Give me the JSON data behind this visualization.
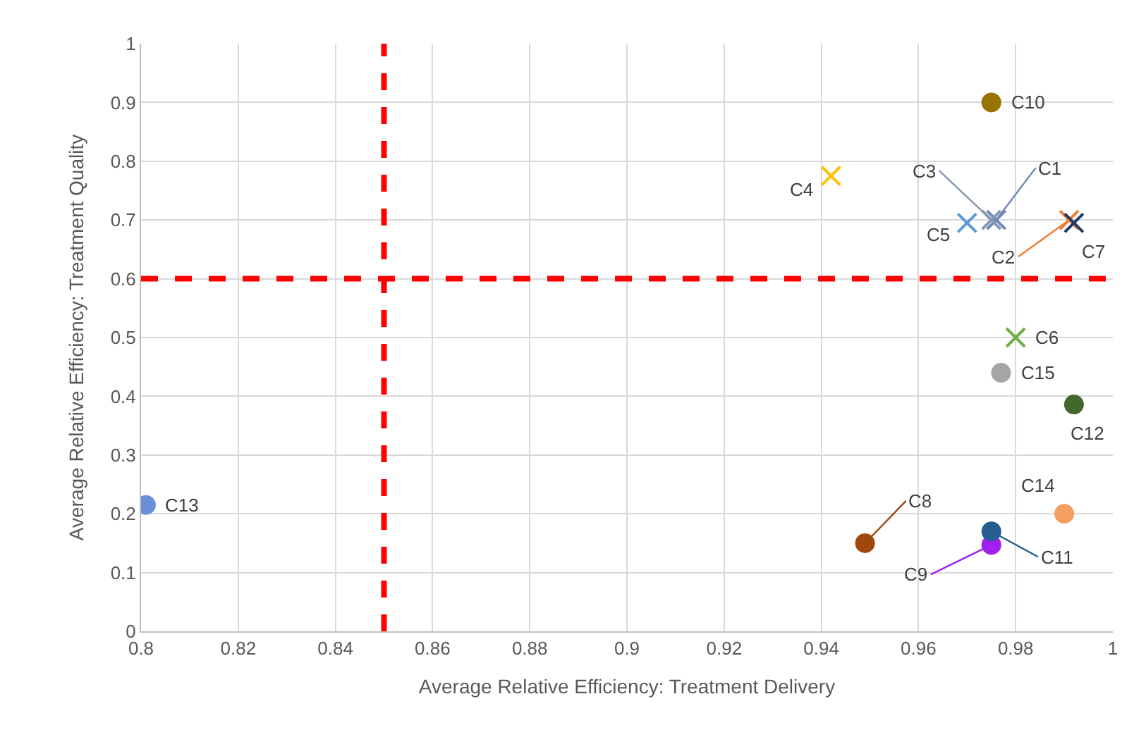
{
  "chart_data": {
    "type": "scatter",
    "xlabel": "Average Relative Efficiency: Treatment Delivery",
    "ylabel": "Average Relative Efficiency: Treatment Quality",
    "xlim": [
      0.8,
      1
    ],
    "xticks": [
      0.8,
      0.82,
      0.84,
      0.86,
      0.88,
      0.9,
      0.92,
      0.94,
      0.96,
      0.98,
      1
    ],
    "ylim": [
      0,
      1
    ],
    "yticks": [
      0,
      0.1,
      0.2,
      0.3,
      0.4,
      0.5,
      0.6,
      0.7,
      0.8,
      0.9,
      1
    ],
    "grid": true,
    "legend": false,
    "series": [
      {
        "name": "C1",
        "color": "#7088b8",
        "marker": "cross",
        "x": [
          0.976
        ],
        "values": [
          0.7
        ]
      },
      {
        "name": "C2",
        "color": "#ed7d31",
        "marker": "cross",
        "x": [
          0.991
        ],
        "values": [
          0.7
        ]
      },
      {
        "name": "C3",
        "color": "#8497b0",
        "marker": "cross",
        "x": [
          0.975
        ],
        "values": [
          0.7
        ]
      },
      {
        "name": "C4",
        "color": "#ffc000",
        "marker": "cross",
        "x": [
          0.942
        ],
        "values": [
          0.775
        ]
      },
      {
        "name": "C5",
        "color": "#5b9bd5",
        "marker": "cross",
        "x": [
          0.97
        ],
        "values": [
          0.695
        ]
      },
      {
        "name": "C6",
        "color": "#70ad47",
        "marker": "cross",
        "x": [
          0.98
        ],
        "values": [
          0.5
        ]
      },
      {
        "name": "C7",
        "color": "#1f3864",
        "marker": "cross",
        "x": [
          0.992
        ],
        "values": [
          0.695
        ]
      },
      {
        "name": "C8",
        "color": "#9e480e",
        "marker": "circle",
        "x": [
          0.949
        ],
        "values": [
          0.15
        ]
      },
      {
        "name": "C9",
        "color": "#a020f0",
        "marker": "circle",
        "x": [
          0.975
        ],
        "values": [
          0.147
        ]
      },
      {
        "name": "C10",
        "color": "#997300",
        "marker": "circle",
        "x": [
          0.975
        ],
        "values": [
          0.9
        ]
      },
      {
        "name": "C11",
        "color": "#255e91",
        "marker": "circle",
        "x": [
          0.975
        ],
        "values": [
          0.17
        ]
      },
      {
        "name": "C12",
        "color": "#43682b",
        "marker": "circle",
        "x": [
          0.992
        ],
        "values": [
          0.386
        ]
      },
      {
        "name": "C13",
        "color": "#6a8fd8",
        "marker": "circle",
        "x": [
          0.801
        ],
        "values": [
          0.215
        ]
      },
      {
        "name": "C14",
        "color": "#f4a062",
        "marker": "circle",
        "x": [
          0.99
        ],
        "values": [
          0.2
        ]
      },
      {
        "name": "C15",
        "color": "#a5a5a5",
        "marker": "circle",
        "x": [
          0.977
        ],
        "values": [
          0.44
        ]
      }
    ],
    "ref_lines": [
      {
        "axis": "x",
        "value": 0.85,
        "color": "#ff0000",
        "line_style": "dashed"
      },
      {
        "axis": "y",
        "value": 0.6,
        "color": "#ff0000",
        "line_style": "dashed"
      }
    ]
  }
}
